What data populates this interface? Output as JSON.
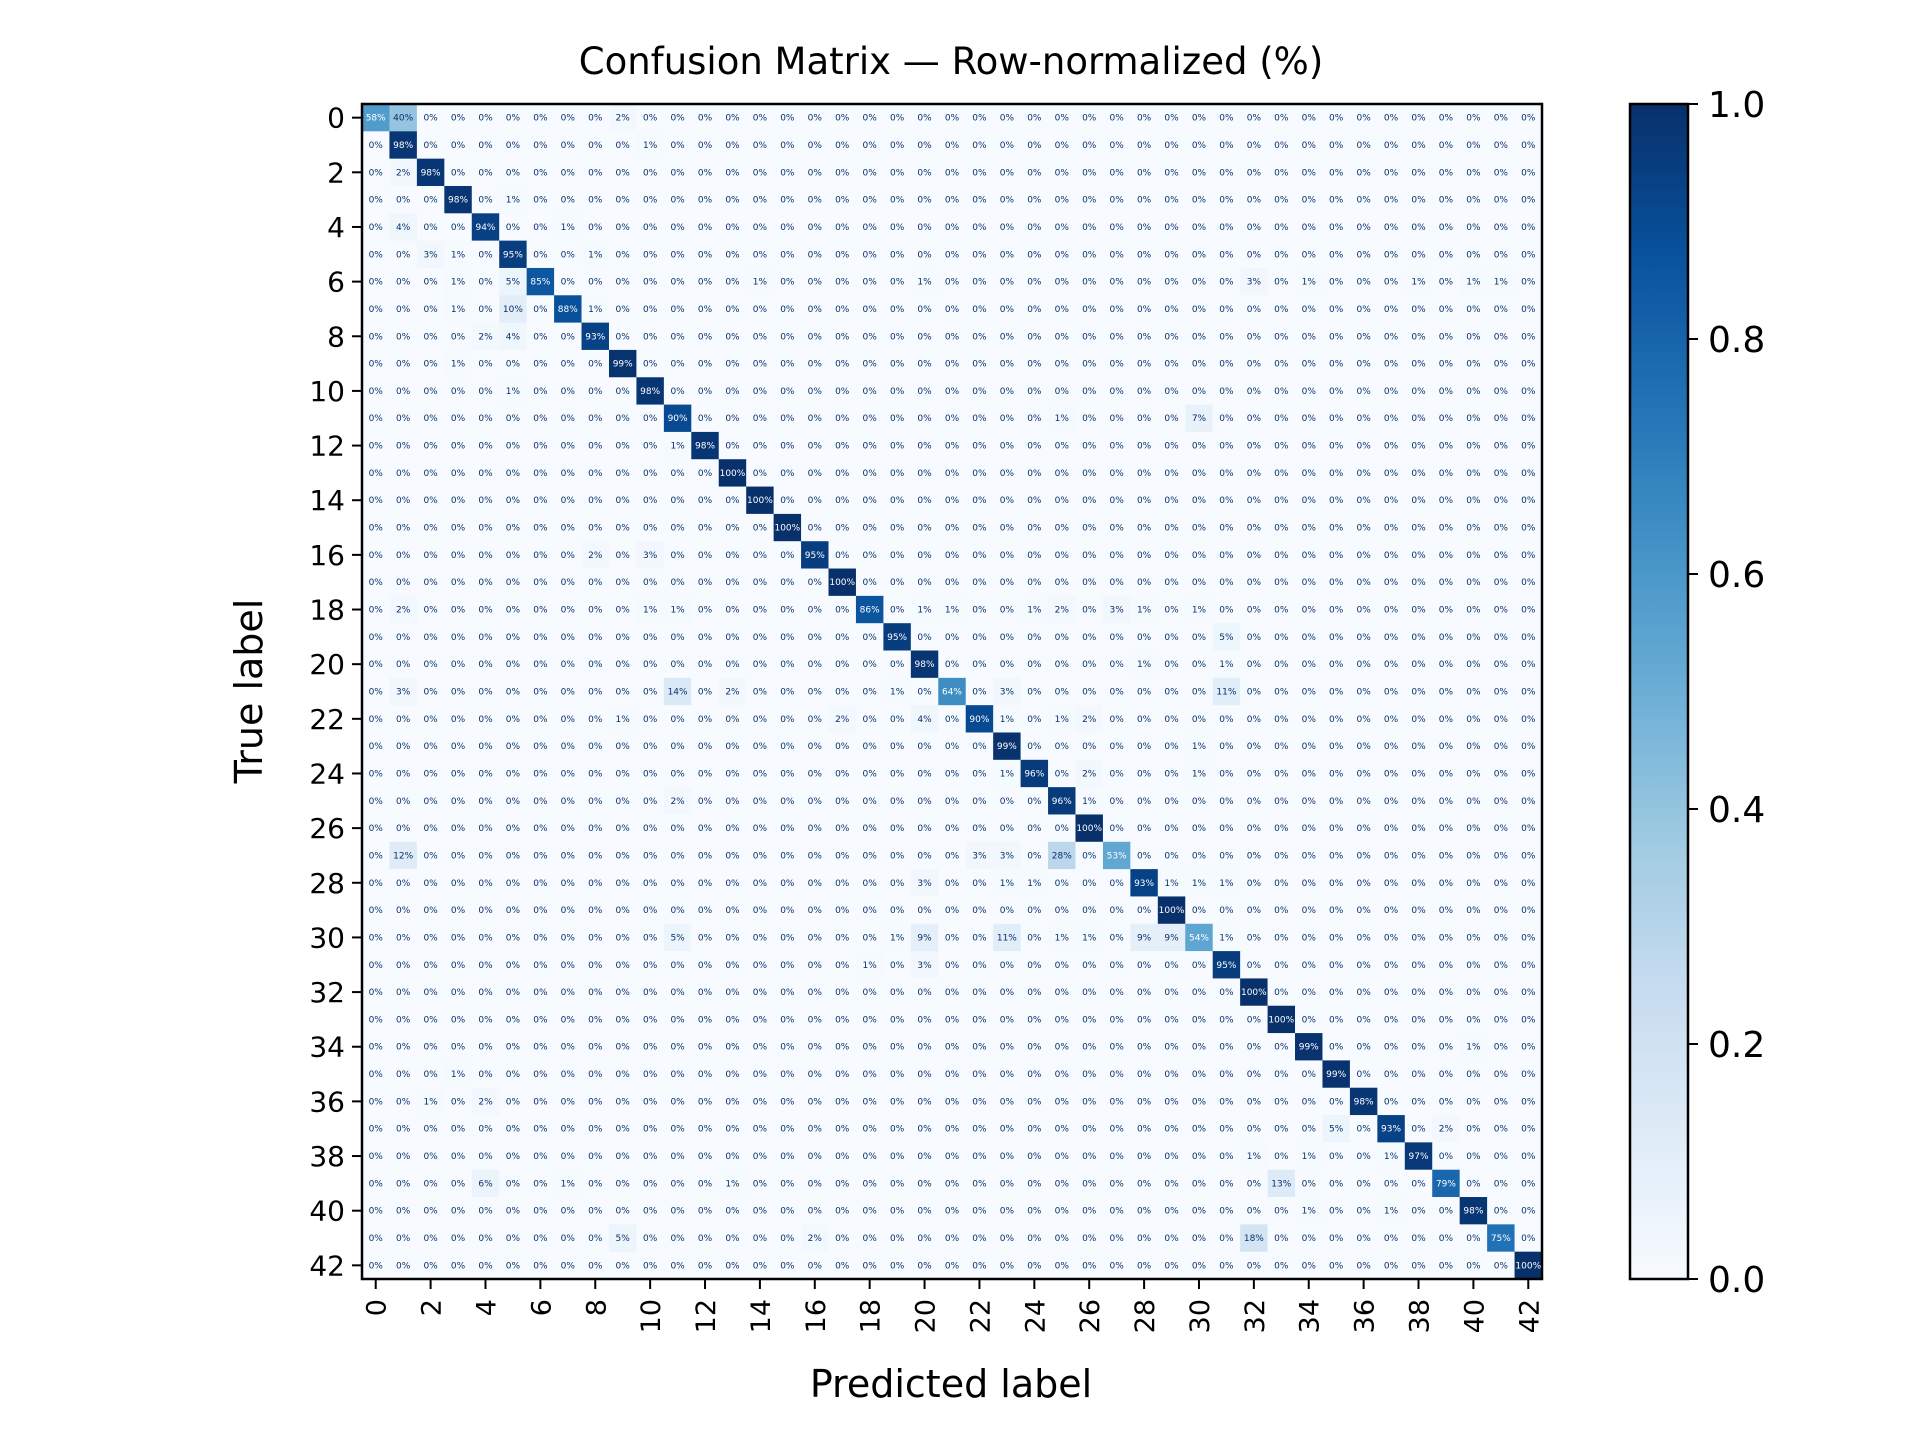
{
  "chart_data": {
    "type": "heatmap",
    "title": "Confusion Matrix — Row-normalized (%)",
    "xlabel": "Predicted label",
    "ylabel": "True label",
    "n_classes": 43,
    "x_tick_labels": [
      "0",
      "2",
      "4",
      "6",
      "8",
      "10",
      "12",
      "14",
      "16",
      "18",
      "20",
      "22",
      "24",
      "26",
      "28",
      "30",
      "32",
      "34",
      "36",
      "38",
      "40",
      "42"
    ],
    "y_tick_labels": [
      "0",
      "2",
      "4",
      "6",
      "8",
      "10",
      "12",
      "14",
      "16",
      "18",
      "20",
      "22",
      "24",
      "26",
      "28",
      "30",
      "32",
      "34",
      "36",
      "38",
      "40",
      "42"
    ],
    "colorbar": {
      "range": [
        0,
        1
      ],
      "ticks": [
        "0.0",
        "0.2",
        "0.4",
        "0.6",
        "0.8",
        "1.0"
      ],
      "colormap": "Blues"
    },
    "diagonal_percent": [
      58,
      98,
      98,
      98,
      94,
      95,
      85,
      88,
      93,
      99,
      98,
      90,
      98,
      100,
      100,
      100,
      95,
      100,
      86,
      95,
      98,
      64,
      90,
      99,
      96,
      96,
      100,
      53,
      93,
      100,
      54,
      95,
      100,
      100,
      99,
      99,
      98,
      93,
      97,
      79,
      98,
      75,
      100
    ],
    "off_diagonal_percent": [
      {
        "row": 0,
        "col": 1,
        "value": 40
      },
      {
        "row": 0,
        "col": 9,
        "value": 2
      },
      {
        "row": 1,
        "col": 10,
        "value": 1
      },
      {
        "row": 2,
        "col": 1,
        "value": 2
      },
      {
        "row": 3,
        "col": 5,
        "value": 1
      },
      {
        "row": 4,
        "col": 1,
        "value": 4
      },
      {
        "row": 4,
        "col": 7,
        "value": 1
      },
      {
        "row": 5,
        "col": 2,
        "value": 3
      },
      {
        "row": 5,
        "col": 3,
        "value": 1
      },
      {
        "row": 5,
        "col": 8,
        "value": 1
      },
      {
        "row": 6,
        "col": 3,
        "value": 1
      },
      {
        "row": 6,
        "col": 5,
        "value": 5
      },
      {
        "row": 6,
        "col": 14,
        "value": 1
      },
      {
        "row": 6,
        "col": 20,
        "value": 1
      },
      {
        "row": 6,
        "col": 32,
        "value": 3
      },
      {
        "row": 6,
        "col": 34,
        "value": 1
      },
      {
        "row": 6,
        "col": 38,
        "value": 1
      },
      {
        "row": 6,
        "col": 40,
        "value": 1
      },
      {
        "row": 6,
        "col": 41,
        "value": 1
      },
      {
        "row": 7,
        "col": 3,
        "value": 1
      },
      {
        "row": 7,
        "col": 5,
        "value": 10
      },
      {
        "row": 7,
        "col": 8,
        "value": 1
      },
      {
        "row": 8,
        "col": 4,
        "value": 2
      },
      {
        "row": 8,
        "col": 5,
        "value": 4
      },
      {
        "row": 9,
        "col": 3,
        "value": 1
      },
      {
        "row": 10,
        "col": 5,
        "value": 1
      },
      {
        "row": 11,
        "col": 25,
        "value": 1
      },
      {
        "row": 11,
        "col": 30,
        "value": 7
      },
      {
        "row": 12,
        "col": 11,
        "value": 1
      },
      {
        "row": 16,
        "col": 8,
        "value": 2
      },
      {
        "row": 16,
        "col": 10,
        "value": 3
      },
      {
        "row": 18,
        "col": 1,
        "value": 2
      },
      {
        "row": 18,
        "col": 10,
        "value": 1
      },
      {
        "row": 18,
        "col": 11,
        "value": 1
      },
      {
        "row": 18,
        "col": 20,
        "value": 1
      },
      {
        "row": 18,
        "col": 21,
        "value": 1
      },
      {
        "row": 18,
        "col": 24,
        "value": 1
      },
      {
        "row": 18,
        "col": 25,
        "value": 2
      },
      {
        "row": 18,
        "col": 27,
        "value": 3
      },
      {
        "row": 18,
        "col": 28,
        "value": 1
      },
      {
        "row": 18,
        "col": 30,
        "value": 1
      },
      {
        "row": 19,
        "col": 31,
        "value": 5
      },
      {
        "row": 20,
        "col": 28,
        "value": 1
      },
      {
        "row": 20,
        "col": 31,
        "value": 1
      },
      {
        "row": 21,
        "col": 1,
        "value": 3
      },
      {
        "row": 21,
        "col": 11,
        "value": 14
      },
      {
        "row": 21,
        "col": 13,
        "value": 2
      },
      {
        "row": 21,
        "col": 19,
        "value": 1
      },
      {
        "row": 21,
        "col": 23,
        "value": 3
      },
      {
        "row": 21,
        "col": 31,
        "value": 11
      },
      {
        "row": 22,
        "col": 9,
        "value": 1
      },
      {
        "row": 22,
        "col": 17,
        "value": 2
      },
      {
        "row": 22,
        "col": 20,
        "value": 4
      },
      {
        "row": 22,
        "col": 23,
        "value": 1
      },
      {
        "row": 22,
        "col": 25,
        "value": 1
      },
      {
        "row": 22,
        "col": 26,
        "value": 2
      },
      {
        "row": 23,
        "col": 30,
        "value": 1
      },
      {
        "row": 24,
        "col": 23,
        "value": 1
      },
      {
        "row": 24,
        "col": 26,
        "value": 2
      },
      {
        "row": 24,
        "col": 30,
        "value": 1
      },
      {
        "row": 25,
        "col": 11,
        "value": 2
      },
      {
        "row": 25,
        "col": 26,
        "value": 1
      },
      {
        "row": 27,
        "col": 1,
        "value": 12
      },
      {
        "row": 27,
        "col": 22,
        "value": 3
      },
      {
        "row": 27,
        "col": 23,
        "value": 3
      },
      {
        "row": 27,
        "col": 25,
        "value": 28
      },
      {
        "row": 28,
        "col": 20,
        "value": 3
      },
      {
        "row": 28,
        "col": 23,
        "value": 1
      },
      {
        "row": 28,
        "col": 24,
        "value": 1
      },
      {
        "row": 28,
        "col": 29,
        "value": 1
      },
      {
        "row": 28,
        "col": 30,
        "value": 1
      },
      {
        "row": 28,
        "col": 31,
        "value": 1
      },
      {
        "row": 30,
        "col": 11,
        "value": 5
      },
      {
        "row": 30,
        "col": 19,
        "value": 1
      },
      {
        "row": 30,
        "col": 20,
        "value": 9
      },
      {
        "row": 30,
        "col": 23,
        "value": 11
      },
      {
        "row": 30,
        "col": 25,
        "value": 1
      },
      {
        "row": 30,
        "col": 26,
        "value": 1
      },
      {
        "row": 30,
        "col": 28,
        "value": 9
      },
      {
        "row": 30,
        "col": 29,
        "value": 9
      },
      {
        "row": 30,
        "col": 31,
        "value": 1
      },
      {
        "row": 31,
        "col": 18,
        "value": 1
      },
      {
        "row": 31,
        "col": 20,
        "value": 3
      },
      {
        "row": 34,
        "col": 40,
        "value": 1
      },
      {
        "row": 35,
        "col": 3,
        "value": 1
      },
      {
        "row": 36,
        "col": 2,
        "value": 1
      },
      {
        "row": 36,
        "col": 4,
        "value": 2
      },
      {
        "row": 37,
        "col": 35,
        "value": 5
      },
      {
        "row": 37,
        "col": 39,
        "value": 2
      },
      {
        "row": 38,
        "col": 32,
        "value": 1
      },
      {
        "row": 38,
        "col": 34,
        "value": 1
      },
      {
        "row": 38,
        "col": 37,
        "value": 1
      },
      {
        "row": 39,
        "col": 4,
        "value": 6
      },
      {
        "row": 39,
        "col": 7,
        "value": 1
      },
      {
        "row": 39,
        "col": 13,
        "value": 1
      },
      {
        "row": 39,
        "col": 33,
        "value": 13
      },
      {
        "row": 40,
        "col": 34,
        "value": 1
      },
      {
        "row": 40,
        "col": 37,
        "value": 1
      },
      {
        "row": 41,
        "col": 9,
        "value": 5
      },
      {
        "row": 41,
        "col": 16,
        "value": 2
      },
      {
        "row": 41,
        "col": 32,
        "value": 18
      }
    ],
    "grid": false,
    "legend": "none"
  }
}
